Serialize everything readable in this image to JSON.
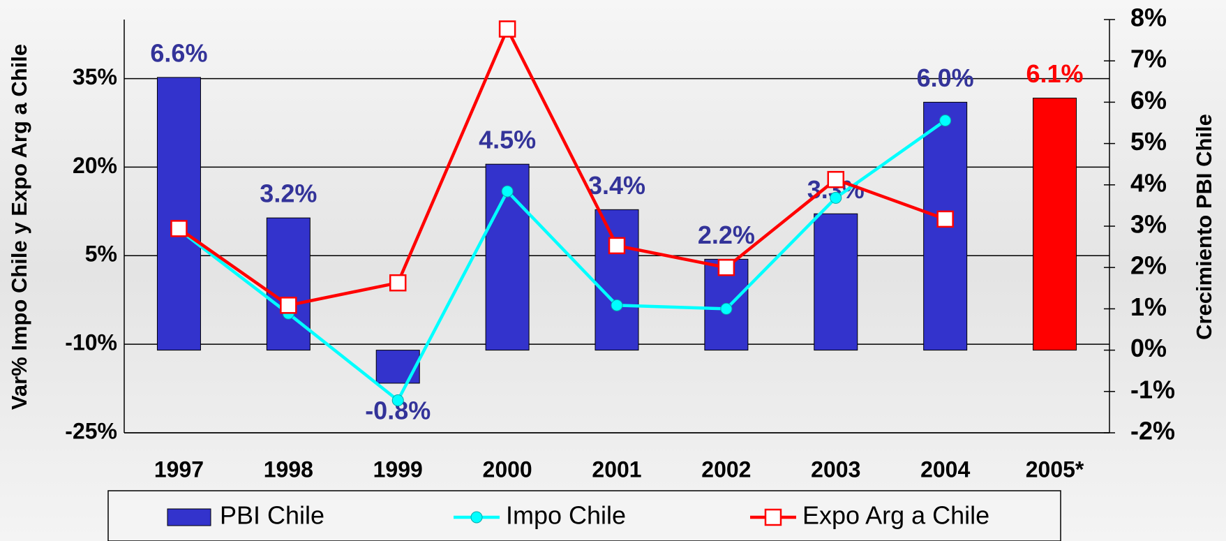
{
  "chart_data": {
    "type": "bar_line",
    "y_label": "Var% Impo Chile y Expo Arg a Chile",
    "y2_label": "Crecimiento PBI Chile",
    "categories": [
      "1997",
      "1998",
      "1999",
      "2000",
      "2001",
      "2002",
      "2003",
      "2004",
      "2005*"
    ],
    "ylim": [
      -25,
      45
    ],
    "yticks": [
      {
        "value": -25,
        "label": "-25%"
      },
      {
        "value": -10,
        "label": "-10%"
      },
      {
        "value": 5,
        "label": "5%"
      },
      {
        "value": 20,
        "label": "20%"
      },
      {
        "value": 35,
        "label": "35%"
      }
    ],
    "y2lim": [
      -2,
      8
    ],
    "y2ticks": [
      {
        "value": -2,
        "label": "-2%"
      },
      {
        "value": -1,
        "label": "-1%"
      },
      {
        "value": 0,
        "label": "0%"
      },
      {
        "value": 1,
        "label": "1%"
      },
      {
        "value": 2,
        "label": "2%"
      },
      {
        "value": 3,
        "label": "3%"
      },
      {
        "value": 4,
        "label": "4%"
      },
      {
        "value": 5,
        "label": "5%"
      },
      {
        "value": 6,
        "label": "6%"
      },
      {
        "value": 7,
        "label": "7%"
      },
      {
        "value": 8,
        "label": "8%"
      }
    ],
    "grid": true,
    "series": [
      {
        "name": "PBI Chile",
        "type": "bar",
        "axis": "y2",
        "color": "#3333cc",
        "colors": [
          "#3333cc",
          "#3333cc",
          "#3333cc",
          "#3333cc",
          "#3333cc",
          "#3333cc",
          "#3333cc",
          "#3333cc",
          "#ff0000"
        ],
        "values": [
          6.6,
          3.2,
          -0.8,
          4.5,
          3.4,
          2.2,
          3.3,
          6.0,
          6.1
        ],
        "value_labels": [
          "6.6%",
          "3.2%",
          "-0.8%",
          "4.5%",
          "3.4%",
          "2.2%",
          "3.3%",
          "6.0%",
          "6.1%"
        ]
      },
      {
        "name": "Impo Chile",
        "type": "line",
        "axis": "y",
        "color": "#00ffff",
        "marker": "circle",
        "values": [
          9.4,
          -4.8,
          -19.5,
          15.9,
          -3.4,
          -4.0,
          14.8,
          27.9,
          null
        ]
      },
      {
        "name": "Expo Arg a Chile",
        "type": "line",
        "axis": "y",
        "color": "#ff0000",
        "marker": "square",
        "values": [
          9.6,
          -3.4,
          0.4,
          43.4,
          6.7,
          3.0,
          17.9,
          11.2,
          null
        ]
      }
    ]
  }
}
